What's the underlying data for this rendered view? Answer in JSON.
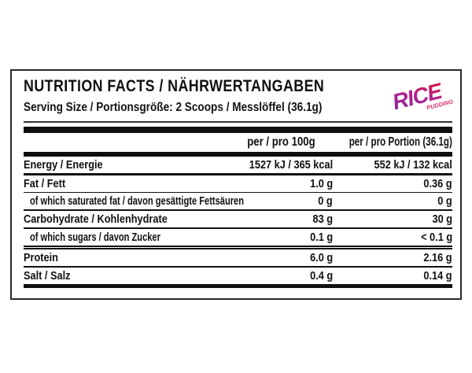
{
  "label": {
    "title": "NUTRITION FACTS / NÄHRWERTANGABEN",
    "serving": "Serving Size / Portionsgröße: 2 Scoops / Messlöffel (36.1g)",
    "brand": {
      "name": "RICE",
      "sub": "PUDDING",
      "gradient_start": "#7c2f9c",
      "gradient_mid": "#b02090",
      "gradient_end": "#dd1330",
      "sub_color": "#d6356f"
    },
    "columns": {
      "per100": "per / pro 100g",
      "portion": "per / pro Portion (36.1g)"
    },
    "rows": [
      {
        "name": "Energy / Energie",
        "per100": "1527 kJ / 365 kcal",
        "portion": "552 kJ / 132 kcal"
      },
      {
        "name": "Fat / Fett",
        "per100": "1.0 g",
        "portion": "0.36 g"
      },
      {
        "name": "of which saturated fat / davon gesättigte Fettsäuren",
        "per100": "0 g",
        "portion": "0 g"
      },
      {
        "name": "Carbohydrate / Kohlenhydrate",
        "per100": "83 g",
        "portion": "30 g"
      },
      {
        "name": "of which sugars / davon Zucker",
        "per100": "0.1 g",
        "portion": "< 0.1 g"
      },
      {
        "name": "Protein",
        "per100": "6.0 g",
        "portion": "2.16 g"
      },
      {
        "name": "Salt / Salz",
        "per100": "0.4 g",
        "portion": "0.14 g"
      }
    ],
    "border_color": "#111111",
    "background": "#ffffff"
  }
}
